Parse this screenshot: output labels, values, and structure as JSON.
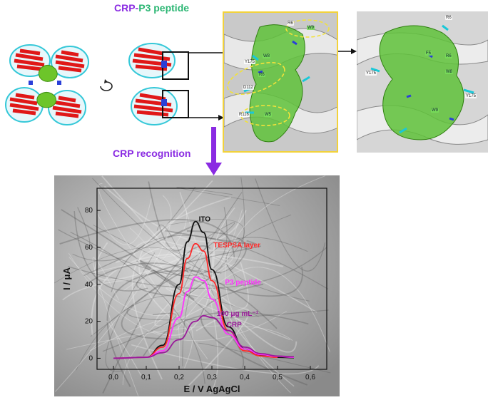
{
  "title": {
    "part1": "CRP-",
    "part2": "P3 peptide"
  },
  "recognition_label": "CRP recognition",
  "residue_labels_zoom": [
    "R6",
    "W9",
    "W8",
    "Y175",
    "R6",
    "D112",
    "R116",
    "W5"
  ],
  "residue_labels_final": [
    "R6",
    "F5",
    "R6",
    "Y175",
    "W8",
    "Y175",
    "W9"
  ],
  "colors": {
    "title_purple": "#8a2be2",
    "title_green": "#2bb673",
    "arrow_purple": "#8a2be2",
    "highlight_yellow": "#f2d23a",
    "ito": "#111111",
    "tespsa": "#ff2a2a",
    "p3": "#ff33ff",
    "crp": "#9a1a9a"
  },
  "chart_data": {
    "type": "line",
    "xlabel": "E / V AgAgCl",
    "ylabel": "I / μA",
    "xlim": [
      -0.05,
      0.65
    ],
    "ylim": [
      -6,
      92
    ],
    "xticks": [
      "0,0",
      "0,1",
      "0,2",
      "0,3",
      "0,4",
      "0,5",
      "0,6"
    ],
    "xtick_values": [
      0.0,
      0.1,
      0.2,
      0.3,
      0.4,
      0.5,
      0.6
    ],
    "yticks": [
      "0",
      "20",
      "40",
      "60",
      "80"
    ],
    "ytick_values": [
      0,
      20,
      40,
      60,
      80
    ],
    "series": [
      {
        "name": "ITO",
        "color": "#111111",
        "x": [
          0.0,
          0.1,
          0.15,
          0.2,
          0.225,
          0.25,
          0.275,
          0.3,
          0.35,
          0.4,
          0.45,
          0.5,
          0.55
        ],
        "y": [
          0,
          0.5,
          7,
          40,
          63,
          74,
          68,
          48,
          17,
          5,
          1.5,
          0.5,
          0.3
        ]
      },
      {
        "name": "TESPSA layer",
        "color": "#ff2a2a",
        "x": [
          0.0,
          0.1,
          0.15,
          0.2,
          0.225,
          0.25,
          0.275,
          0.3,
          0.35,
          0.4,
          0.45,
          0.5
        ],
        "y": [
          0,
          0.5,
          6,
          35,
          54,
          62,
          58,
          42,
          15,
          4,
          1.2,
          0.5
        ]
      },
      {
        "name": "P3 peptide",
        "color": "#ff33ff",
        "x": [
          0.0,
          0.1,
          0.15,
          0.2,
          0.225,
          0.25,
          0.275,
          0.3,
          0.35,
          0.4,
          0.45,
          0.5,
          0.55
        ],
        "y": [
          0,
          0.5,
          4,
          22,
          36,
          44,
          42,
          32,
          13,
          5,
          2,
          1,
          0.5
        ]
      },
      {
        "name": "100 μg mL⁻¹ CRP",
        "color": "#9a1a9a",
        "x": [
          0.0,
          0.1,
          0.15,
          0.2,
          0.25,
          0.275,
          0.3,
          0.35,
          0.4,
          0.45,
          0.5,
          0.55
        ],
        "y": [
          0,
          0.5,
          3,
          10,
          20,
          23,
          22,
          15,
          6,
          2.5,
          1.2,
          0.8
        ]
      }
    ],
    "annotations": [
      {
        "text": "ITO",
        "color": "#111111",
        "x": 0.26,
        "y": 74
      },
      {
        "text": "TESPSA layer",
        "color": "#ff2a2a",
        "x": 0.305,
        "y": 60
      },
      {
        "text": "P3 peptide",
        "color": "#ff33ff",
        "x": 0.34,
        "y": 40
      },
      {
        "text": "100 μg mL⁻¹",
        "color": "#9a1a9a",
        "x": 0.315,
        "y": 23
      },
      {
        "text": "CRP",
        "color": "#9a1a9a",
        "x": 0.345,
        "y": 17
      }
    ],
    "grid": false,
    "legend": "none"
  }
}
